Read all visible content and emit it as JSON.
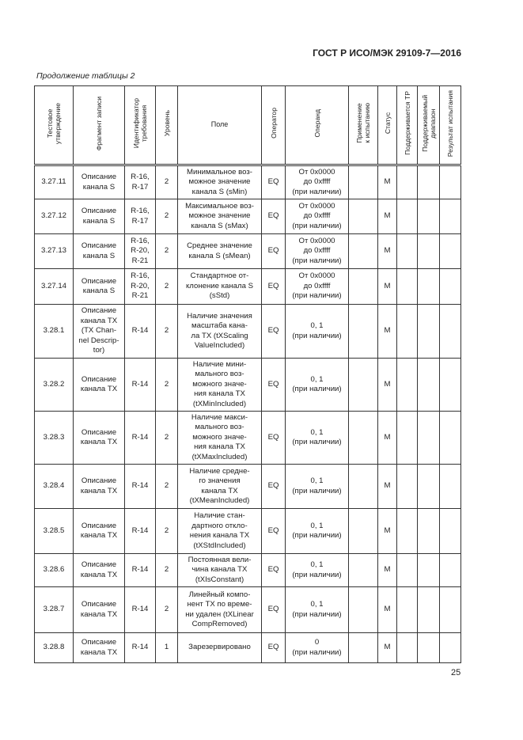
{
  "header": {
    "doc_title": "ГОСТ Р ИСО/МЭК 29109-7—2016",
    "caption": "Продолжение таблицы 2"
  },
  "table": {
    "columns": [
      "Тестовое\nутверждение",
      "Фрагмент записи",
      "Идентификатор\nтребования",
      "Уровень",
      "Поле",
      "Оператор",
      "Операнд",
      "Применение\nк испытанию",
      "Статус",
      "Поддерживается ТР",
      "Поддерживаемый\nдиапазон",
      "Результат испытания"
    ],
    "rows": [
      [
        "3.27.11",
        "Описание\nканала S",
        "R-16,\nR-17",
        "2",
        "Минимальное воз-\nможное значение\nканала S (sMin)",
        "EQ",
        "От 0x0000\nдо 0xffff\n(при наличии)",
        "",
        "M",
        "",
        "",
        ""
      ],
      [
        "3.27.12",
        "Описание\nканала S",
        "R-16,\nR-17",
        "2",
        "Максимальное воз-\nможное значение\nканала S (sMax)",
        "EQ",
        "От 0x0000\nдо 0xffff\n(при наличии)",
        "",
        "M",
        "",
        "",
        ""
      ],
      [
        "3.27.13",
        "Описание\nканала S",
        "R-16,\nR-20,\nR-21",
        "2",
        "Среднее значение\nканала S (sMean)",
        "EQ",
        "От 0x0000\nдо 0xffff\n(при наличии)",
        "",
        "M",
        "",
        "",
        ""
      ],
      [
        "3.27.14",
        "Описание\nканала S",
        "R-16,\nR-20,\nR-21",
        "2",
        "Стандартное от-\nклонение канала S\n(sStd)",
        "EQ",
        "От 0x0000\nдо 0xffff\n(при наличии)",
        "",
        "M",
        "",
        "",
        ""
      ],
      [
        "3.28.1",
        "Описание\nканала TX\n(TX Chan-\nnel Descrip-\ntor)",
        "R-14",
        "2",
        "Наличие значения\nмасштаба кана-\nла TX (tXScaling\nValueIncluded)",
        "EQ",
        "0, 1\n(при наличии)",
        "",
        "M",
        "",
        "",
        ""
      ],
      [
        "3.28.2",
        "Описание\nканала TX",
        "R-14",
        "2",
        "Наличие мини-\nмального воз-\nможного значе-\nния канала TX\n(tXMinIncluded)",
        "EQ",
        "0, 1\n(при наличии)",
        "",
        "M",
        "",
        "",
        ""
      ],
      [
        "3.28.3",
        "Описание\nканала TX",
        "R-14",
        "2",
        "Наличие макси-\nмального воз-\nможного значе-\nния канала TX\n(tXMaxIncluded)",
        "EQ",
        "0, 1\n(при наличии)",
        "",
        "M",
        "",
        "",
        ""
      ],
      [
        "3.28.4",
        "Описание\nканала TX",
        "R-14",
        "2",
        "Наличие средне-\nго значения\nканала TX\n(tXMeanIncluded)",
        "EQ",
        "0, 1\n(при наличии)",
        "",
        "M",
        "",
        "",
        ""
      ],
      [
        "3.28.5",
        "Описание\nканала TX",
        "R-14",
        "2",
        "Наличие стан-\nдартного откло-\nнения канала TX\n(tXStdIncluded)",
        "EQ",
        "0, 1\n(при наличии)",
        "",
        "M",
        "",
        "",
        ""
      ],
      [
        "3.28.6",
        "Описание\nканала TX",
        "R-14",
        "2",
        "Постоянная вели-\nчина канала TX\n(tXIsConstant)",
        "EQ",
        "0, 1\n(при наличии)",
        "",
        "M",
        "",
        "",
        ""
      ],
      [
        "3.28.7",
        "Описание\nканала TX",
        "R-14",
        "2",
        "Линейный компо-\nнент TX по време-\nни удален (tXLinear\nCompRemoved)",
        "EQ",
        "0, 1\n(при наличии)",
        "",
        "M",
        "",
        "",
        ""
      ],
      [
        "3.28.8",
        "Описание\nканала TX",
        "R-14",
        "1",
        "Зарезервировано",
        "EQ",
        "0\n(при наличии)",
        "",
        "M",
        "",
        "",
        ""
      ]
    ]
  },
  "footer": {
    "page_number": "25"
  }
}
